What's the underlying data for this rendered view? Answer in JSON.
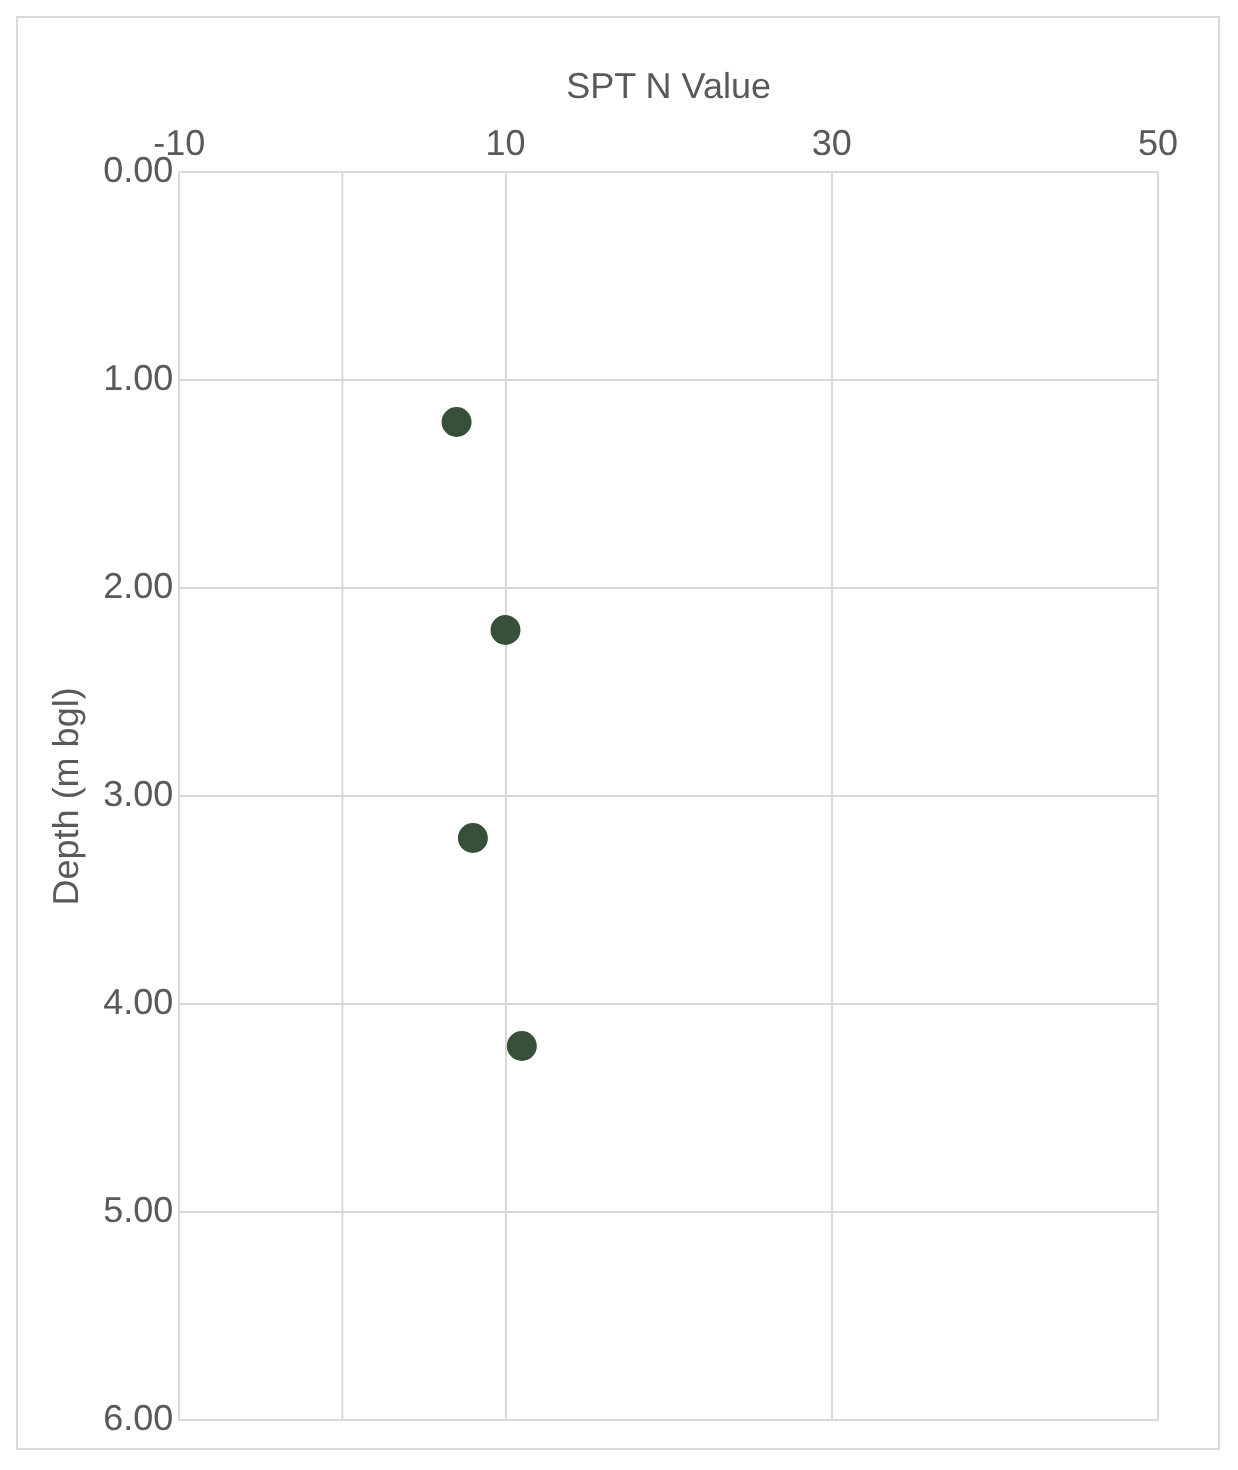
{
  "chart_data": {
    "type": "scatter",
    "xlabel": "SPT N Value",
    "ylabel": "Depth (m bgl)",
    "x": [
      7,
      10,
      8,
      11
    ],
    "series": [
      {
        "color": "#375038",
        "values": [
          1.2,
          2.2,
          3.2,
          4.2
        ]
      }
    ],
    "xlim": [
      -10,
      50
    ],
    "xticks": [
      -10,
      10,
      30,
      50
    ],
    "ylim": [
      6,
      0
    ],
    "yticks": [
      {
        "value": 0,
        "label": "0.00"
      },
      {
        "value": 1,
        "label": "1.00"
      },
      {
        "value": 2,
        "label": "2.00"
      },
      {
        "value": 3,
        "label": "3.00"
      },
      {
        "value": 4,
        "label": "4.00"
      },
      {
        "value": 5,
        "label": "5.00"
      },
      {
        "value": 6,
        "label": "6.00"
      }
    ],
    "ref_lines": [
      {
        "axis": "x",
        "value": 0,
        "color": "#d9d9d9"
      }
    ],
    "grid": true,
    "legend": false,
    "marker": "circle"
  }
}
